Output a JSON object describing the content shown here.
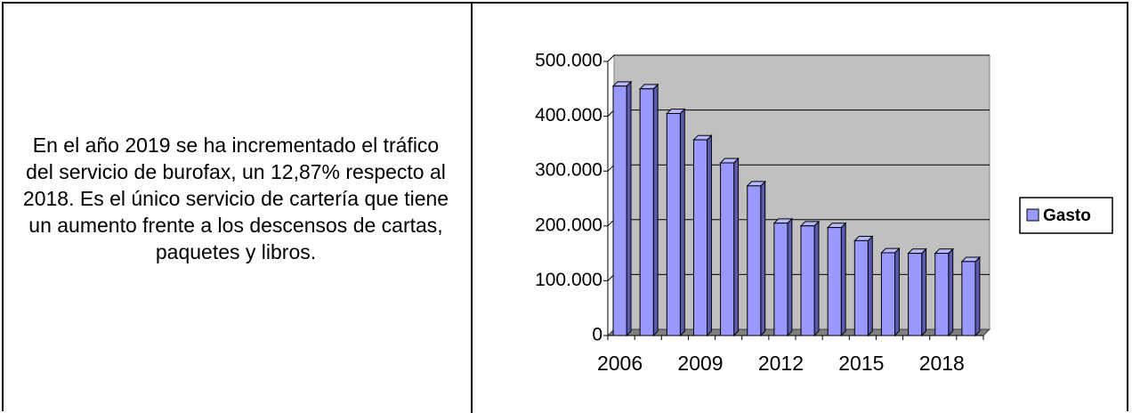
{
  "text": "En el año 2019 se ha incrementado el tráfico del servicio de burofax, un 12,87% respecto al 2018. Es el único servicio de cartería que tiene un aumento frente a los descensos de cartas, paquetes y libros.",
  "chart_data": {
    "type": "bar3d",
    "categories": [
      "2006",
      null,
      null,
      "2009",
      null,
      null,
      "2012",
      null,
      null,
      "2015",
      null,
      null,
      "2018",
      null
    ],
    "series": [
      {
        "name": "Gasto",
        "color": "#9999ff",
        "values": [
          455000,
          450000,
          405000,
          357000,
          315000,
          273000,
          205000,
          200000,
          197000,
          173000,
          151000,
          150000,
          150000,
          135000
        ]
      }
    ],
    "ylim": [
      0,
      500000
    ],
    "yticks": [
      0,
      {
        "value": 100000,
        "label": "100.000"
      },
      {
        "value": 200000,
        "label": "200.000"
      },
      {
        "value": 300000,
        "label": "300.000"
      },
      {
        "value": 400000,
        "label": "400.000"
      },
      {
        "value": 500000,
        "label": "500.000"
      }
    ],
    "grid": true,
    "legend": "right"
  }
}
